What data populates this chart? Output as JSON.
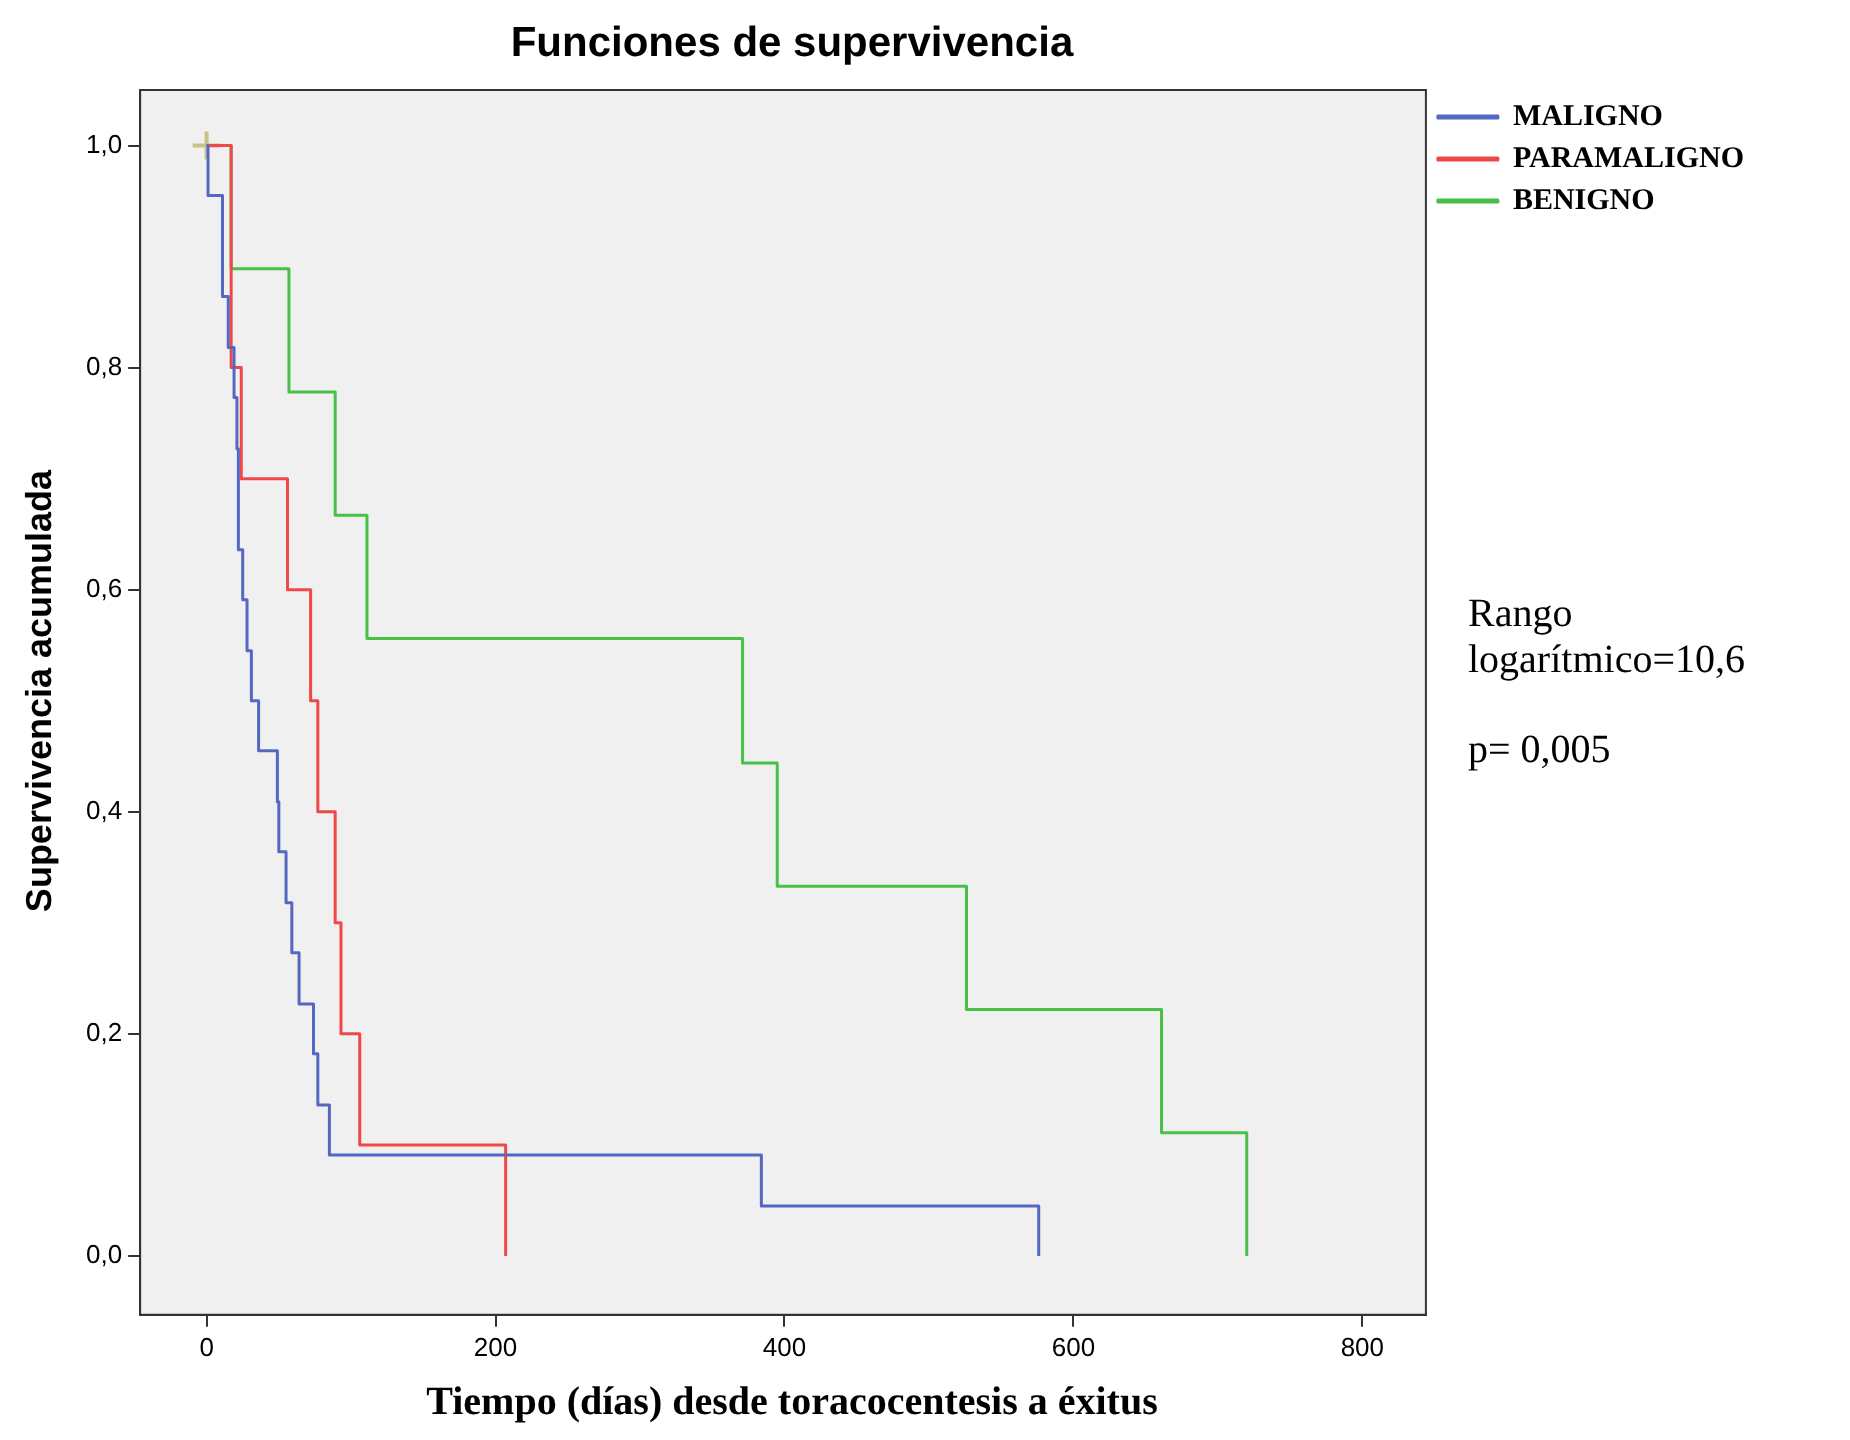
{
  "chart_data": {
    "type": "step",
    "title": "Funciones de supervivencia",
    "xlabel": "Tiempo (días) desde toracocentesis a éxitus",
    "ylabel": "Supervivencia acumulada",
    "series": [
      {
        "name": "MALIGNO",
        "color": "#5567c0",
        "x": [
          0,
          1,
          11,
          15,
          19,
          21,
          22,
          25,
          28,
          31,
          36,
          49,
          50,
          55,
          59,
          64,
          74,
          77,
          85,
          384,
          576
        ],
        "values": [
          1,
          0.955,
          0.864,
          0.818,
          0.773,
          0.727,
          0.636,
          0.591,
          0.545,
          0.5,
          0.455,
          0.409,
          0.364,
          0.318,
          0.273,
          0.227,
          0.182,
          0.136,
          0.091,
          0.045,
          0
        ]
      },
      {
        "name": "PARAMALIGNO",
        "color": "#f04848",
        "x": [
          0,
          17,
          24,
          56,
          72,
          77,
          89,
          93,
          106,
          207
        ],
        "values": [
          1,
          0.8,
          0.7,
          0.6,
          0.5,
          0.4,
          0.3,
          0.2,
          0.1,
          0
        ]
      },
      {
        "name": "BENIGNO",
        "color": "#48c048",
        "x": [
          0,
          17,
          57,
          89,
          111,
          371,
          395,
          526,
          661,
          720
        ],
        "values": [
          1,
          0.889,
          0.778,
          0.667,
          0.556,
          0.444,
          0.333,
          0.222,
          0.111,
          0
        ]
      },
      {
        "type": "scatter",
        "color": "#c8c08a",
        "marker": "cross",
        "x": [
          0
        ],
        "values": [
          1
        ]
      }
    ],
    "xlim": [
      -46,
      844
    ],
    "xticks": [
      0,
      200,
      400,
      600,
      800
    ],
    "ylim": [
      -0.053,
      1.05
    ],
    "yticks": [
      {
        "value": 0,
        "label": "0,0"
      },
      {
        "value": 0.2,
        "label": "0,2"
      },
      {
        "value": 0.4,
        "label": "0,4"
      },
      {
        "value": 0.6,
        "label": "0,6"
      },
      {
        "value": 0.8,
        "label": "0,8"
      },
      {
        "value": 1,
        "label": "1,0"
      }
    ],
    "grid": false,
    "legend": "top right",
    "annotations": [
      "Rango logarítmico=10,6",
      "p= 0,005"
    ]
  }
}
